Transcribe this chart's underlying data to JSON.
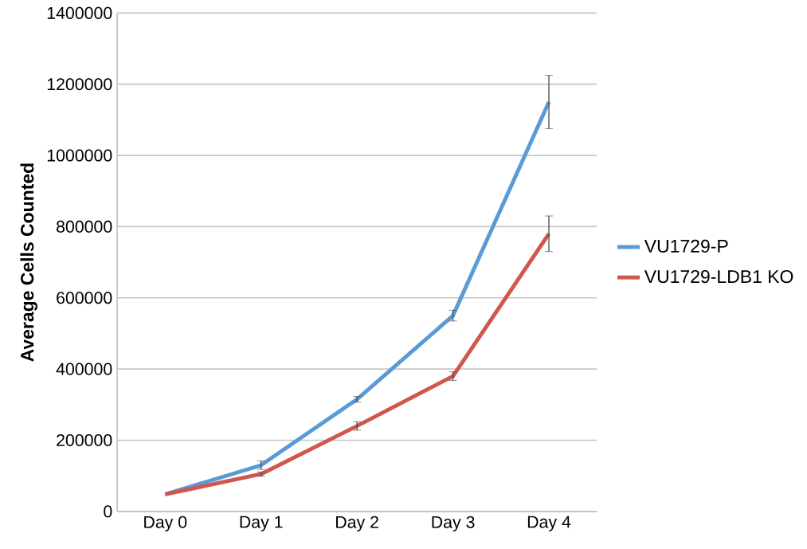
{
  "chart_data": {
    "type": "line",
    "ylabel": "Average Cells Counted",
    "categories": [
      "Day 0",
      "Day 1",
      "Day 2",
      "Day 3",
      "Day 4"
    ],
    "series": [
      {
        "name": "VU1729-P",
        "color": "#5b9bd5",
        "values": [
          48000,
          130000,
          315000,
          550000,
          1150000
        ],
        "errors": [
          null,
          12000,
          8000,
          15000,
          75000
        ]
      },
      {
        "name": "VU1729-LDB1 KO",
        "color": "#d0574e",
        "values": [
          48000,
          105000,
          240000,
          380000,
          780000
        ],
        "errors": [
          null,
          6000,
          12000,
          12000,
          50000
        ]
      }
    ],
    "ylim": [
      0,
      1400000
    ],
    "yticks": [
      0,
      200000,
      400000,
      600000,
      800000,
      1000000,
      1200000,
      1400000
    ],
    "grid": "y",
    "legend": "right",
    "marker": "none",
    "line_style": "solid"
  }
}
